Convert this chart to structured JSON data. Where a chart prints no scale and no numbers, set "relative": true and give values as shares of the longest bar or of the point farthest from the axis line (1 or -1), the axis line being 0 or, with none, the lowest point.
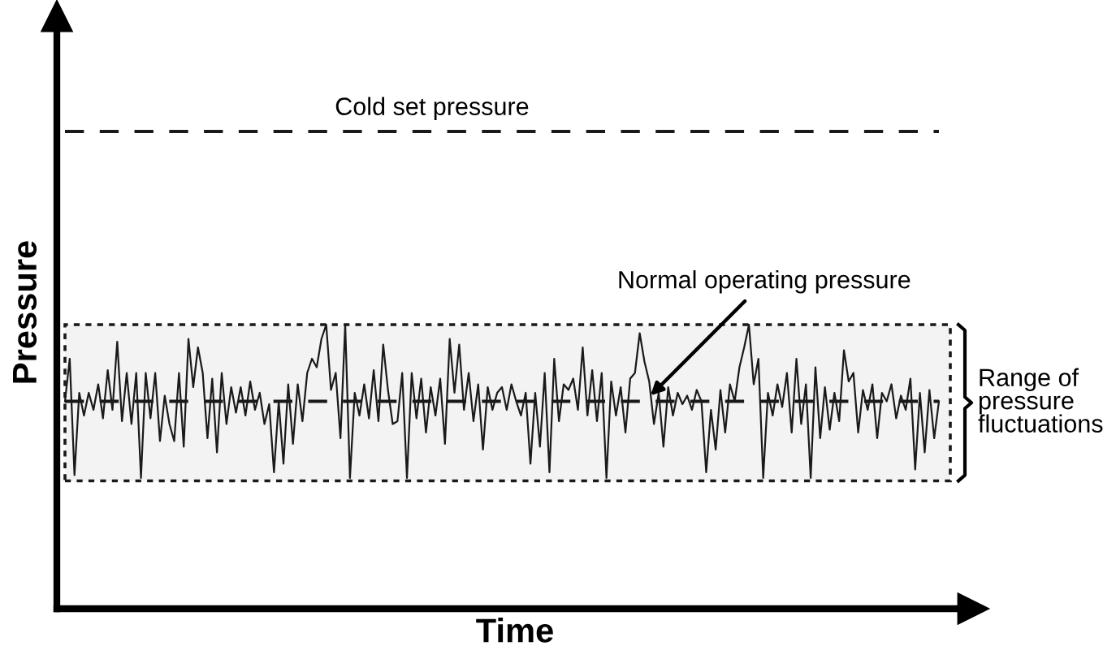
{
  "chart_data": {
    "type": "line",
    "relative": true,
    "xlabel": "Time",
    "ylabel": "Pressure",
    "legend": false,
    "marker": "none",
    "line_style": "solid",
    "categories": [
      null,
      null,
      null,
      null,
      null,
      null,
      null,
      null,
      null,
      null,
      null,
      null,
      null,
      null,
      null,
      null,
      null,
      null,
      null,
      null,
      null,
      null,
      null,
      null,
      null,
      null,
      null,
      null,
      null,
      null,
      null,
      null,
      null,
      null,
      null,
      null,
      null,
      null,
      null,
      null,
      null,
      null,
      null,
      null,
      null,
      null,
      null,
      null,
      null,
      null,
      null,
      null,
      null,
      null,
      null,
      null,
      null,
      null,
      null,
      null,
      null,
      null,
      null,
      null,
      null,
      null,
      null,
      null,
      null,
      null,
      null,
      null,
      null,
      null,
      null,
      null,
      null,
      null,
      null,
      null,
      null,
      null,
      null,
      null,
      null,
      null,
      null,
      null,
      null,
      null,
      null,
      null,
      null,
      null,
      null,
      null,
      null,
      null,
      null,
      null,
      null,
      null,
      null,
      null,
      null,
      null,
      null,
      null,
      null,
      null,
      null,
      null,
      null,
      null,
      null,
      null,
      null,
      null,
      null,
      null,
      null,
      null,
      null,
      null,
      null,
      null,
      null,
      null,
      null,
      null,
      null,
      null,
      null,
      null,
      null,
      null,
      null,
      null,
      null,
      null,
      null,
      null,
      null,
      null,
      null,
      null,
      null,
      null,
      null,
      null,
      null,
      null,
      null,
      null,
      null,
      null,
      null,
      null,
      null,
      null,
      null,
      null,
      null,
      null,
      null,
      null,
      null,
      null,
      null,
      null,
      null,
      null,
      null,
      null,
      null,
      null,
      null,
      null,
      null,
      null,
      null,
      null,
      null,
      null,
      null
    ],
    "series": [
      {
        "color": "#1a1a1a",
        "values": [
          0.73,
          0.88,
          0.47,
          0.76,
          0.68,
          0.76,
          0.7,
          0.79,
          0.67,
          0.84,
          0.7,
          0.94,
          0.66,
          0.83,
          0.65,
          0.83,
          0.46,
          0.83,
          0.67,
          0.83,
          0.59,
          0.75,
          0.65,
          0.59,
          0.83,
          0.57,
          0.95,
          0.78,
          0.92,
          0.83,
          0.6,
          0.81,
          0.55,
          0.83,
          0.65,
          0.78,
          0.69,
          0.78,
          0.68,
          0.8,
          0.7,
          0.76,
          0.65,
          0.72,
          0.48,
          0.73,
          0.51,
          0.79,
          0.58,
          0.79,
          0.66,
          0.83,
          0.88,
          0.85,
          0.95,
          1.0,
          0.77,
          0.83,
          0.6,
          1.0,
          0.46,
          0.76,
          0.68,
          0.79,
          0.67,
          0.84,
          0.66,
          0.93,
          0.77,
          0.65,
          0.66,
          0.83,
          0.46,
          0.83,
          0.67,
          0.81,
          0.62,
          0.78,
          0.68,
          0.81,
          0.58,
          0.95,
          0.76,
          0.93,
          0.7,
          0.83,
          0.66,
          0.79,
          0.56,
          0.78,
          0.7,
          0.76,
          0.78,
          0.7,
          0.79,
          0.73,
          0.68,
          0.76,
          0.51,
          0.76,
          0.57,
          0.83,
          0.48,
          0.88,
          0.66,
          0.79,
          0.77,
          0.81,
          0.7,
          0.92,
          0.68,
          0.84,
          0.66,
          0.83,
          0.46,
          0.8,
          0.68,
          0.78,
          0.62,
          0.81,
          0.83,
          0.97,
          0.87,
          0.8,
          0.65,
          0.76,
          0.57,
          0.78,
          0.68,
          0.76,
          0.72,
          0.75,
          0.7,
          0.77,
          0.73,
          0.48,
          0.7,
          0.56,
          0.77,
          0.62,
          0.79,
          0.73,
          0.85,
          0.92,
          1.0,
          0.79,
          0.88,
          0.46,
          0.76,
          0.68,
          0.79,
          0.71,
          0.83,
          0.62,
          0.88,
          0.65,
          0.79,
          0.46,
          0.85,
          0.6,
          0.78,
          0.63,
          0.76,
          0.66,
          0.91,
          0.8,
          0.83,
          0.62,
          0.77,
          0.7,
          0.79,
          0.6,
          0.76,
          0.73,
          0.79,
          0.67,
          0.75,
          0.7,
          0.81,
          0.49,
          0.76,
          0.55,
          0.77,
          0.6,
          0.73
        ]
      }
    ],
    "ref_lines": [
      {
        "axis": "y",
        "value": 1.68,
        "label": "Cold set pressure",
        "line_style": "dashed",
        "color": "#1a1a1a"
      },
      {
        "axis": "y",
        "value": 0.73,
        "label": "Normal operating pressure",
        "line_style": "dashed",
        "color": "#1a1a1a"
      }
    ],
    "bands": [
      {
        "axis": "y",
        "from": 0.45,
        "to": 1.0,
        "label": "Range of\npressure\nfluctuations",
        "color": "#1a1a1a"
      }
    ]
  }
}
